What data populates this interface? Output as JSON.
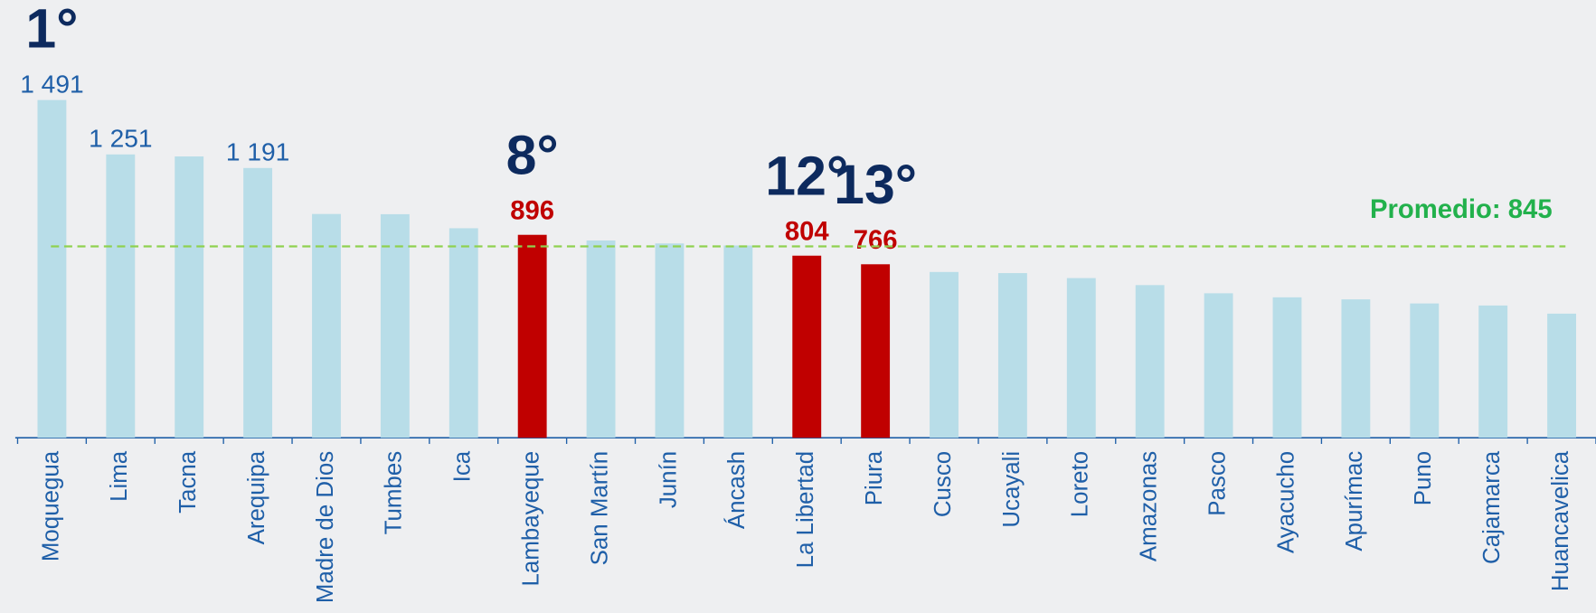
{
  "chart_data": {
    "type": "bar",
    "categories": [
      "Moquegua",
      "Lima",
      "Tacna",
      "Arequipa",
      "Madre de Dios",
      "Tumbes",
      "Ica",
      "Lambayeque",
      "San Martín",
      "Junín",
      "Áncash",
      "La Libertad",
      "Piura",
      "Cusco",
      "Ucayali",
      "Loreto",
      "Amazonas",
      "Pasco",
      "Ayacucho",
      "Apurímac",
      "Puno",
      "Cajamarca",
      "Huancavelica"
    ],
    "values": [
      1491,
      1251,
      1242,
      1191,
      988,
      987,
      925,
      896,
      871,
      858,
      849,
      804,
      766,
      732,
      727,
      705,
      674,
      638,
      620,
      611,
      593,
      584,
      548
    ],
    "value_labels": [
      "1 491",
      "1 251",
      null,
      "1 191",
      null,
      null,
      null,
      "896",
      null,
      null,
      null,
      "804",
      "766",
      null,
      null,
      null,
      null,
      null,
      null,
      null,
      null,
      null,
      null
    ],
    "colors": [
      "#b8dde8",
      "#b8dde8",
      "#b8dde8",
      "#b8dde8",
      "#b8dde8",
      "#b8dde8",
      "#b8dde8",
      "#c00000",
      "#b8dde8",
      "#b8dde8",
      "#b8dde8",
      "#c00000",
      "#c00000",
      "#b8dde8",
      "#b8dde8",
      "#b8dde8",
      "#b8dde8",
      "#b8dde8",
      "#b8dde8",
      "#b8dde8",
      "#b8dde8",
      "#b8dde8",
      "#b8dde8"
    ],
    "ylim": [
      0,
      1550
    ],
    "average": {
      "label": "Promedio: 845",
      "value": 845,
      "color": "#8fd14f"
    },
    "annotations": [
      {
        "text": "1°",
        "category": "Moquegua"
      },
      {
        "text": "8°",
        "category": "Lambayeque"
      },
      {
        "text": "12°",
        "category": "La Libertad"
      },
      {
        "text": "13°",
        "category": "Piura"
      }
    ]
  }
}
